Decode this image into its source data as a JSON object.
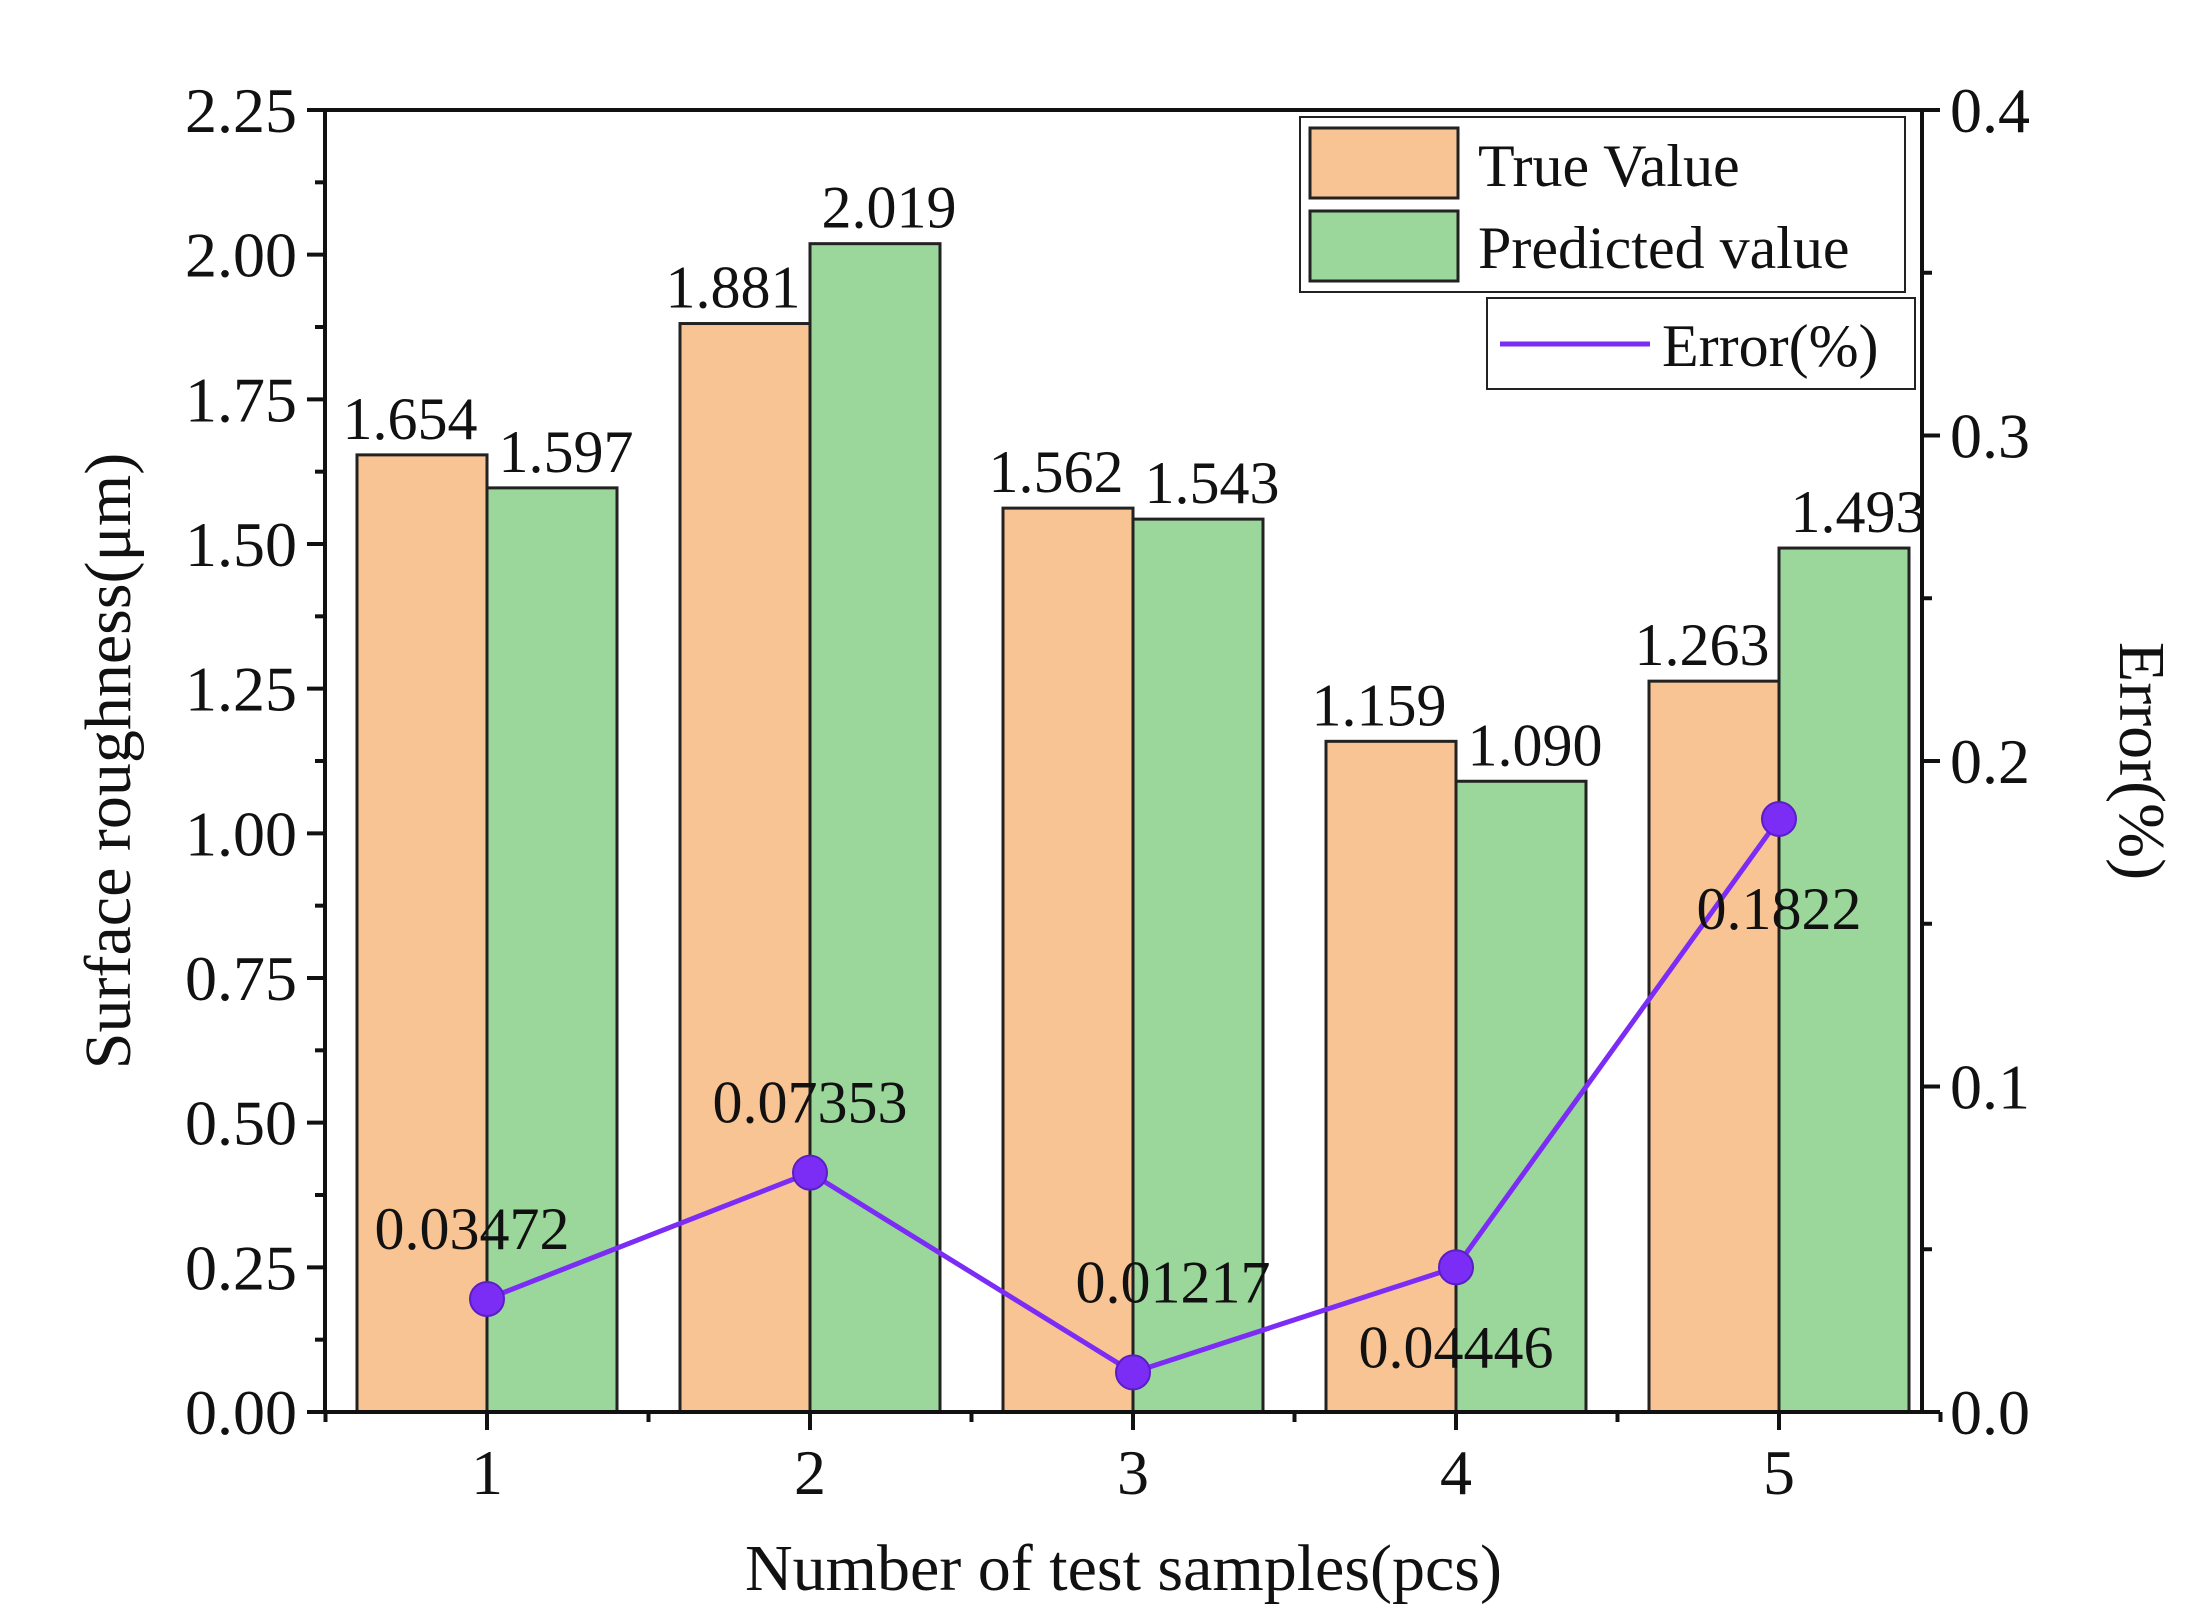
{
  "chart_data": {
    "type": "bar",
    "categories": [
      "1",
      "2",
      "3",
      "4",
      "5"
    ],
    "series": [
      {
        "name": "True Value",
        "kind": "bar",
        "axis": "left",
        "color": "#F9C494",
        "values": [
          1.654,
          1.881,
          1.562,
          1.159,
          1.263
        ],
        "labels": [
          "1.654",
          "1.881",
          "1.562",
          "1.159",
          "1.263"
        ]
      },
      {
        "name": "Predicted value",
        "kind": "bar",
        "axis": "left",
        "color": "#9BD69B",
        "values": [
          1.597,
          2.019,
          1.543,
          1.09,
          1.493
        ],
        "labels": [
          "1.597",
          "2.019",
          "1.543",
          "1.090",
          "1.493"
        ]
      },
      {
        "name": "Error(%)",
        "kind": "line",
        "axis": "right",
        "color": "#7B2CF5",
        "values": [
          0.03472,
          0.07353,
          0.01217,
          0.04446,
          0.1822
        ],
        "labels": [
          "0.03472",
          "0.07353",
          "0.01217",
          "0.04446",
          "0.1822"
        ]
      }
    ],
    "xlabel": "Number of test samples(pcs)",
    "ylabel": "Surface roughness(μm)",
    "y2label": "Error(%)",
    "ylim": [
      0,
      2.25
    ],
    "y2lim": [
      0,
      0.4
    ],
    "yticks": [
      "0.00",
      "0.25",
      "0.50",
      "0.75",
      "1.00",
      "1.25",
      "1.50",
      "1.75",
      "2.00",
      "2.25"
    ],
    "y2ticks": [
      "0.0",
      "0.1",
      "0.2",
      "0.3",
      "0.4"
    ],
    "legend_position": "top-right",
    "grid": false
  }
}
